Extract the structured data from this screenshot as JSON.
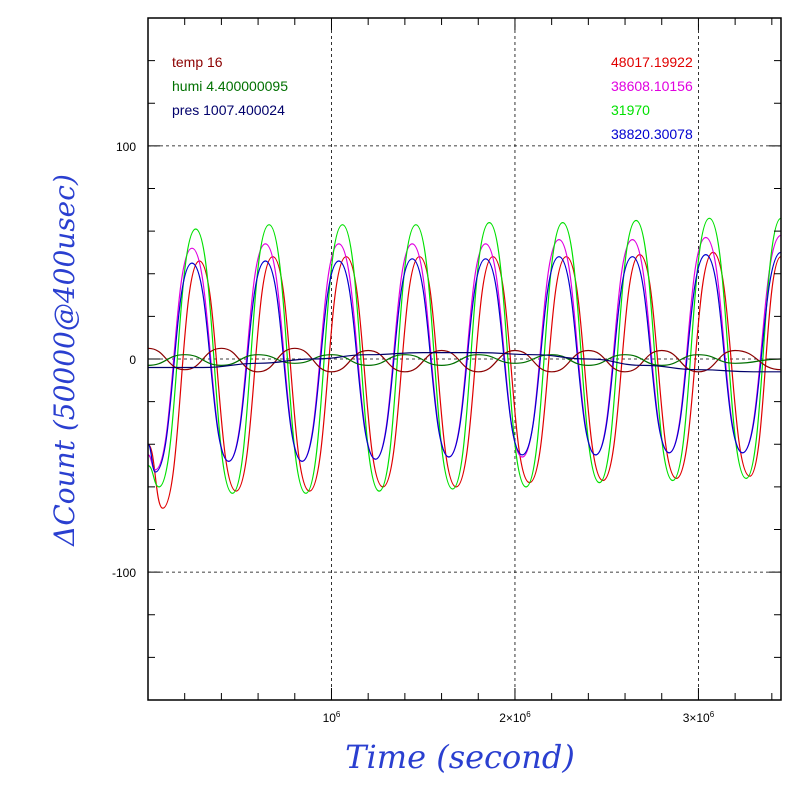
{
  "chart_data": {
    "type": "line",
    "xlabel": "Time (second)",
    "ylabel": "ΔCount (50000@400usec)",
    "xlim": [
      0,
      3450000
    ],
    "ylim": [
      -160,
      160
    ],
    "grid": true,
    "x_ticks": [
      {
        "value": 1000000,
        "base": "10",
        "exp": "6"
      },
      {
        "value": 2000000,
        "base": "2×10",
        "exp": "6"
      },
      {
        "value": 3000000,
        "base": "3×10",
        "exp": "6"
      }
    ],
    "y_ticks": [
      {
        "value": 100,
        "label": "100"
      },
      {
        "value": 0,
        "label": "0"
      },
      {
        "value": -100,
        "label": "-100"
      }
    ],
    "legend_left": [
      {
        "text": "temp 16",
        "color": "#8b0000"
      },
      {
        "text": "humi 4.400000095",
        "color": "#007000"
      },
      {
        "text": "pres 1007.400024",
        "color": "#00006b"
      }
    ],
    "legend_right": [
      {
        "text": "48017.19922",
        "color": "#e00000"
      },
      {
        "text": "38608.10156",
        "color": "#e000e0"
      },
      {
        "text": "31970",
        "color": "#00e000"
      },
      {
        "text": "38820.30078",
        "color": "#0000d0"
      }
    ],
    "oscillation_period": 395000,
    "series": [
      {
        "color": "#e00000",
        "label_ref": "48017.19922",
        "x": [
          0,
          80000,
          280000,
          480000,
          680000,
          880000,
          1080000,
          1280000,
          1480000,
          1680000,
          1880000,
          2080000,
          2280000,
          2480000,
          2680000,
          2880000,
          3080000,
          3280000,
          3450000
        ],
        "y": [
          -40,
          -70,
          46,
          -62,
          48,
          -62,
          48,
          -60,
          48,
          -60,
          48,
          -58,
          48,
          -57,
          49,
          -56,
          50,
          -55,
          48
        ]
      },
      {
        "color": "#e000e0",
        "label_ref": "38608.10156",
        "x": [
          0,
          40000,
          240000,
          440000,
          640000,
          840000,
          1040000,
          1240000,
          1440000,
          1640000,
          1840000,
          2040000,
          2240000,
          2440000,
          2640000,
          2840000,
          3040000,
          3240000,
          3450000
        ],
        "y": [
          -45,
          -52,
          52,
          -48,
          54,
          -48,
          54,
          -47,
          54,
          -46,
          54,
          -46,
          56,
          -45,
          56,
          -44,
          57,
          -44,
          58
        ]
      },
      {
        "color": "#00e000",
        "label_ref": "31970",
        "x": [
          0,
          60000,
          260000,
          460000,
          660000,
          860000,
          1060000,
          1260000,
          1460000,
          1660000,
          1860000,
          2060000,
          2260000,
          2460000,
          2660000,
          2860000,
          3060000,
          3260000,
          3450000
        ],
        "y": [
          -50,
          -60,
          61,
          -63,
          63,
          -63,
          63,
          -62,
          63,
          -61,
          64,
          -60,
          64,
          -58,
          65,
          -57,
          66,
          -56,
          66
        ]
      },
      {
        "color": "#0000d0",
        "label_ref": "38820.30078",
        "x": [
          0,
          40000,
          240000,
          440000,
          640000,
          840000,
          1040000,
          1240000,
          1440000,
          1640000,
          1840000,
          2040000,
          2240000,
          2440000,
          2640000,
          2840000,
          3040000,
          3240000,
          3450000
        ],
        "y": [
          -40,
          -53,
          45,
          -48,
          46,
          -48,
          46,
          -47,
          47,
          -46,
          47,
          -45,
          48,
          -45,
          48,
          -44,
          49,
          -44,
          50
        ]
      },
      {
        "color": "#8b0000",
        "label_ref": "temp 16",
        "x": [
          0,
          200000,
          400000,
          600000,
          800000,
          1000000,
          1200000,
          1400000,
          1600000,
          1800000,
          2000000,
          2200000,
          2400000,
          2600000,
          2800000,
          3000000,
          3200000,
          3450000
        ],
        "y": [
          5,
          -5,
          5,
          -6,
          5,
          -6,
          4,
          -6,
          4,
          -6,
          4,
          -6,
          4,
          -6,
          4,
          -6,
          4,
          -5
        ]
      },
      {
        "color": "#007000",
        "label_ref": "humi 4.400000095",
        "x": [
          0,
          200000,
          400000,
          600000,
          800000,
          1000000,
          1200000,
          1400000,
          1600000,
          1800000,
          2000000,
          2200000,
          2400000,
          2600000,
          2800000,
          3000000,
          3200000,
          3450000
        ],
        "y": [
          -3,
          2,
          -3,
          2,
          -2,
          2,
          -3,
          2,
          -3,
          2,
          -2,
          2,
          -3,
          2,
          -3,
          2,
          -2,
          0
        ]
      },
      {
        "color": "#00006b",
        "label_ref": "pres 1007.400024",
        "x": [
          0,
          300000,
          600000,
          900000,
          1200000,
          1500000,
          1800000,
          2100000,
          2400000,
          2700000,
          3000000,
          3300000,
          3450000
        ],
        "y": [
          -4,
          -4,
          -2,
          0,
          2,
          3,
          3,
          2,
          0,
          -3,
          -5,
          -6,
          -6
        ]
      }
    ]
  }
}
